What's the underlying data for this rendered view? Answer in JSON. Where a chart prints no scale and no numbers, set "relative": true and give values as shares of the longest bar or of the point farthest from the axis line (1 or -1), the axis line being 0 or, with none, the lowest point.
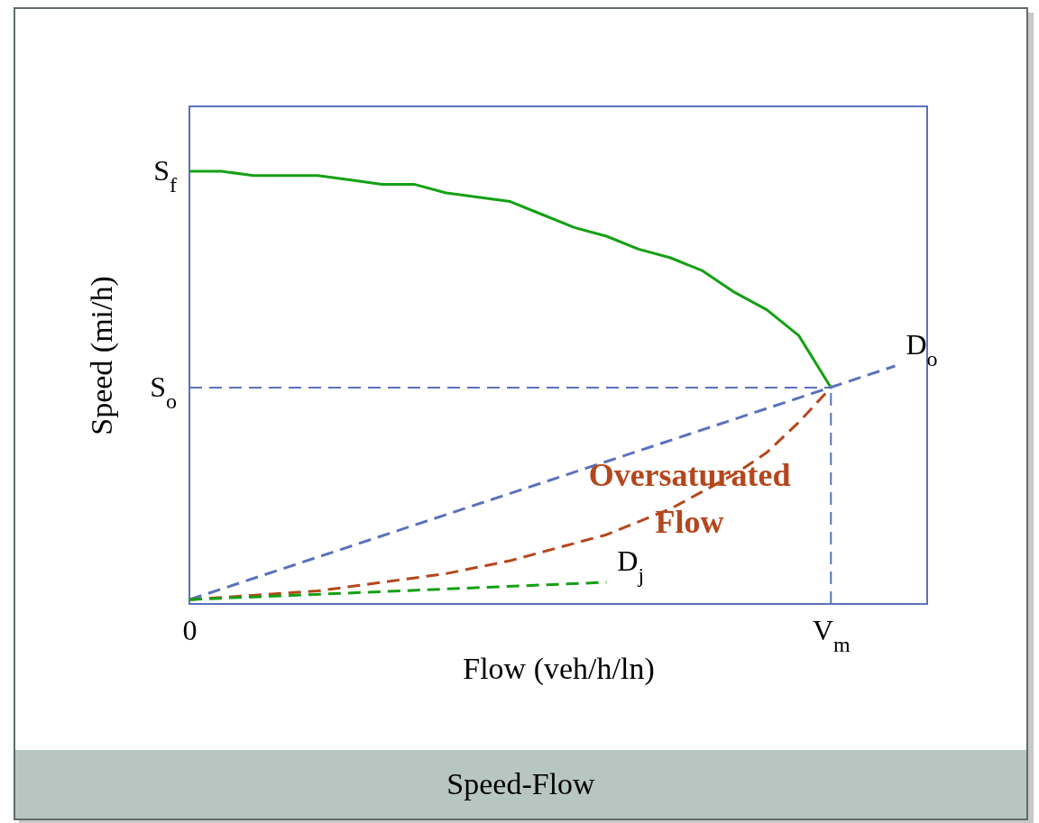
{
  "chart_data": {
    "type": "line",
    "title": "Speed-Flow",
    "xlabel": "Flow (veh/h/ln)",
    "ylabel": "Speed (mi/h)",
    "relative": true,
    "categories": [
      "0",
      null,
      null,
      null,
      null,
      null,
      null,
      null,
      null,
      null,
      null,
      null,
      null,
      null,
      null,
      null,
      null,
      null,
      null,
      null,
      "V$_{m}$",
      null,
      null,
      null
    ],
    "annotations": [
      "S$_{f}$"
    ],
    "ref_lines": [
      {
        "axis": "y",
        "value": 0.5,
        "label": "S$_{o}$",
        "color": "#5a72bb",
        "line_style": "dashed"
      },
      {
        "axis": "x",
        "value": "V$_{m}$",
        "color": "#5a72bb",
        "line_style": "dashed"
      }
    ],
    "series": [
      {
        "color": "#14a014",
        "line_style": "solid",
        "values": [
          1,
          1,
          0.99,
          0.99,
          0.99,
          0.98,
          0.97,
          0.97,
          0.95,
          0.94,
          0.93,
          0.9,
          0.87,
          0.85,
          0.82,
          0.8,
          0.77,
          0.72,
          0.68,
          0.62,
          0.5,
          null,
          null,
          null
        ]
      },
      {
        "name": "D$_{o}$",
        "color": "#5a72bb",
        "line_style": "dashed",
        "values": [
          0.01,
          null,
          null,
          null,
          null,
          null,
          null,
          null,
          null,
          null,
          null,
          null,
          null,
          null,
          null,
          null,
          null,
          null,
          null,
          null,
          null,
          null,
          0.55,
          null
        ]
      },
      {
        "name": "Oversaturated Flow",
        "color": "#b5461c",
        "line_style": "dashed",
        "values": [
          0.01,
          0.015,
          0.02,
          0.025,
          0.03,
          0.04,
          0.05,
          0.06,
          0.07,
          0.085,
          0.1,
          0.12,
          0.14,
          0.16,
          0.19,
          0.22,
          0.26,
          0.3,
          0.35,
          0.42,
          0.5,
          null,
          null,
          null
        ]
      },
      {
        "name": "D$_{j}$",
        "color": "#14a014",
        "line_style": "dashed",
        "values": [
          0.01,
          null,
          null,
          null,
          null,
          null,
          null,
          null,
          null,
          null,
          null,
          null,
          null,
          0.05,
          null,
          null,
          null,
          null,
          null,
          null,
          null,
          null,
          null,
          null
        ]
      }
    ]
  }
}
